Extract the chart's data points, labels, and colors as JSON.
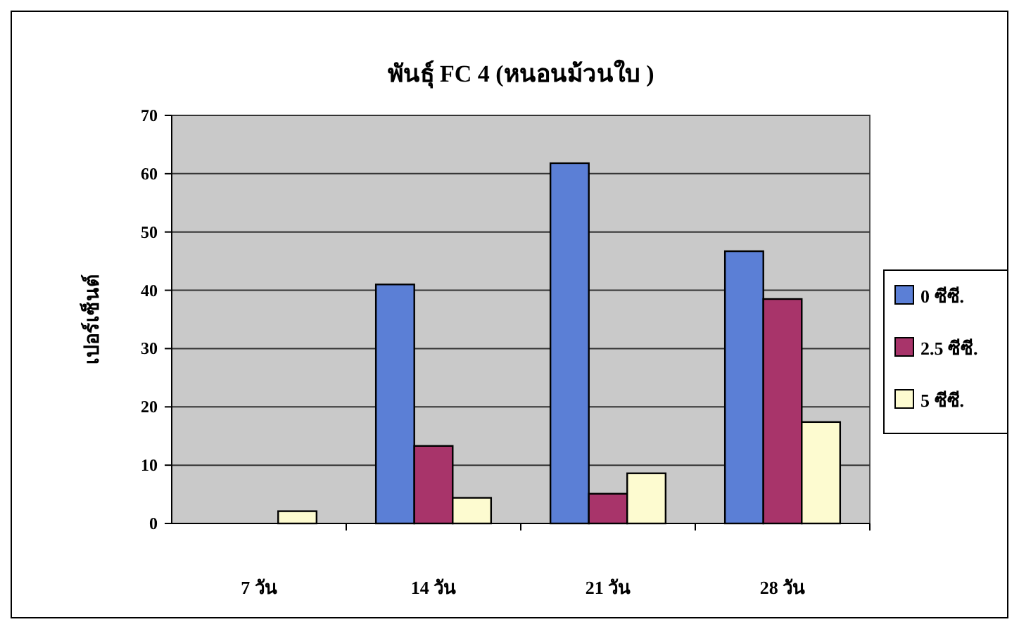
{
  "chart_data": {
    "type": "bar",
    "title": "พันธุ์ FC 4 (หนอนม้วนใบ )",
    "ylabel": "เปอร์เซ็นต์",
    "categories": [
      "7 วัน",
      "14 วัน",
      "21 วัน",
      "28 วัน"
    ],
    "series": [
      {
        "name": "0 ซีซี.",
        "color": "#5b7fd6",
        "values": [
          0,
          41,
          61.8,
          46.7
        ]
      },
      {
        "name": "2.5 ซีซี.",
        "color": "#a8346a",
        "values": [
          0,
          13.3,
          5.1,
          38.5
        ]
      },
      {
        "name": "5 ซีซี.",
        "color": "#fdfbd0",
        "values": [
          2.1,
          4.4,
          8.6,
          17.4
        ]
      }
    ],
    "ylim": [
      0,
      70
    ],
    "yticks": [
      0,
      10,
      20,
      30,
      40,
      50,
      60,
      70
    ],
    "grid": "y",
    "legend": "right"
  }
}
